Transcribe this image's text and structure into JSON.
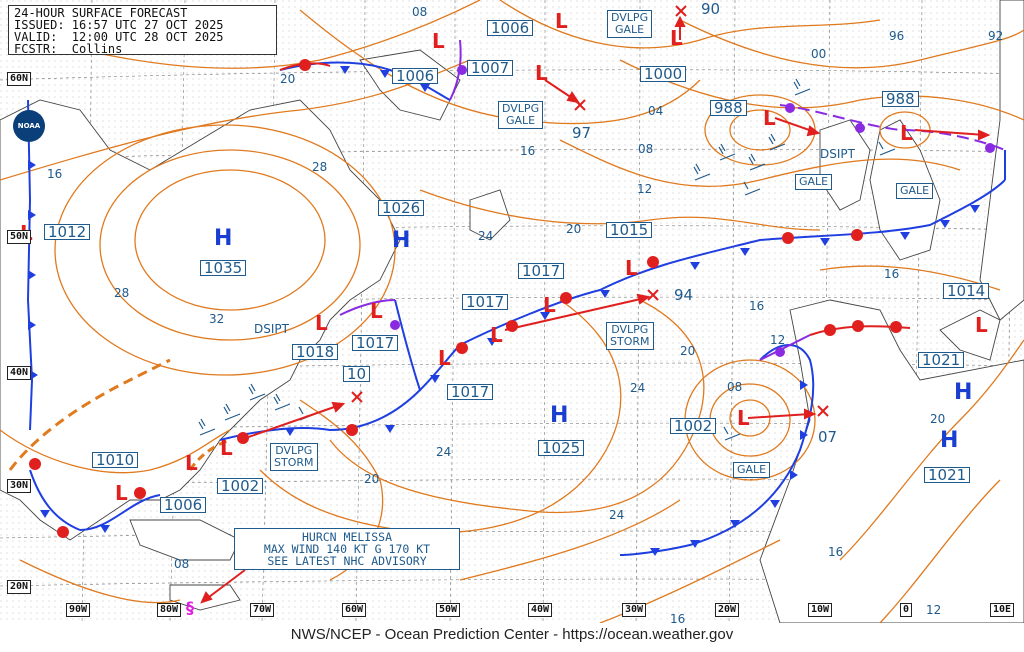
{
  "header": {
    "line1": "24-HOUR SURFACE FORECAST",
    "line2": "ISSUED: 16:57 UTC 27 OCT 2025",
    "line3": "VALID:  12:00 UTC 28 OCT 2025",
    "line4": "FCSTR:  Collins"
  },
  "logo_text": "NOAA",
  "footer": "NWS/NCEP - Ocean Prediction Center - https://ocean.weather.gov",
  "longitude_labels": [
    "90W",
    "80W",
    "70W",
    "60W",
    "50W",
    "40W",
    "30W",
    "20W",
    "10W",
    "0",
    "10E"
  ],
  "latitude_labels": [
    "60N",
    "50N",
    "40N",
    "30N",
    "20N"
  ],
  "pressure_centers": [
    {
      "type": "H",
      "value": "1035"
    },
    {
      "type": "H",
      "value": "1026"
    },
    {
      "type": "H",
      "value": "1025"
    },
    {
      "type": "H",
      "value": "1021"
    },
    {
      "type": "H",
      "value": "1021"
    },
    {
      "type": "L",
      "value": "1012"
    },
    {
      "type": "L",
      "value": "1006"
    },
    {
      "type": "L",
      "value": "1006"
    },
    {
      "type": "L",
      "value": "1007"
    },
    {
      "type": "L",
      "value": "1000"
    },
    {
      "type": "L",
      "value": "988"
    },
    {
      "type": "L",
      "value": "988"
    },
    {
      "type": "L",
      "value": "1015"
    },
    {
      "type": "L",
      "value": "1017"
    },
    {
      "type": "L",
      "value": "1017"
    },
    {
      "type": "L",
      "value": "1017"
    },
    {
      "type": "L",
      "value": "1018"
    },
    {
      "type": "L",
      "value": "1017"
    },
    {
      "type": "L",
      "value": "1010"
    },
    {
      "type": "L",
      "value": "1006"
    },
    {
      "type": "L",
      "value": "1002"
    },
    {
      "type": "L",
      "value": "1002"
    },
    {
      "type": "L",
      "value": "1014"
    }
  ],
  "forecast_positions": [
    "90",
    "97",
    "94",
    "10",
    "07"
  ],
  "warnings": {
    "dvlpg_gale_1": [
      "DVLPG",
      "GALE"
    ],
    "dvlpg_gale_2": [
      "DVLPG",
      "GALE"
    ],
    "gale_1": "GALE",
    "gale_2": "GALE",
    "gale_3": "GALE",
    "dvlpg_storm_1": [
      "DVLPG",
      "STORM"
    ],
    "dvlpg_storm_2": [
      "DVLPG",
      "STORM"
    ]
  },
  "dsipt_labels": [
    "DSIPT",
    "DSIPT"
  ],
  "hurricane": {
    "line1": "HURCN MELISSA",
    "line2": "MAX WIND 140 KT G 170 KT",
    "line3": "SEE LATEST NHC ADVISORY"
  },
  "isobar_labels": [
    "08",
    "16",
    "20",
    "28",
    "28",
    "32",
    "24",
    "20",
    "16",
    "04",
    "08",
    "12",
    "00",
    "96",
    "92",
    "16",
    "16",
    "20",
    "24",
    "12",
    "08",
    "20",
    "16",
    "12",
    "16",
    "24",
    "20",
    "24",
    "08"
  ]
}
